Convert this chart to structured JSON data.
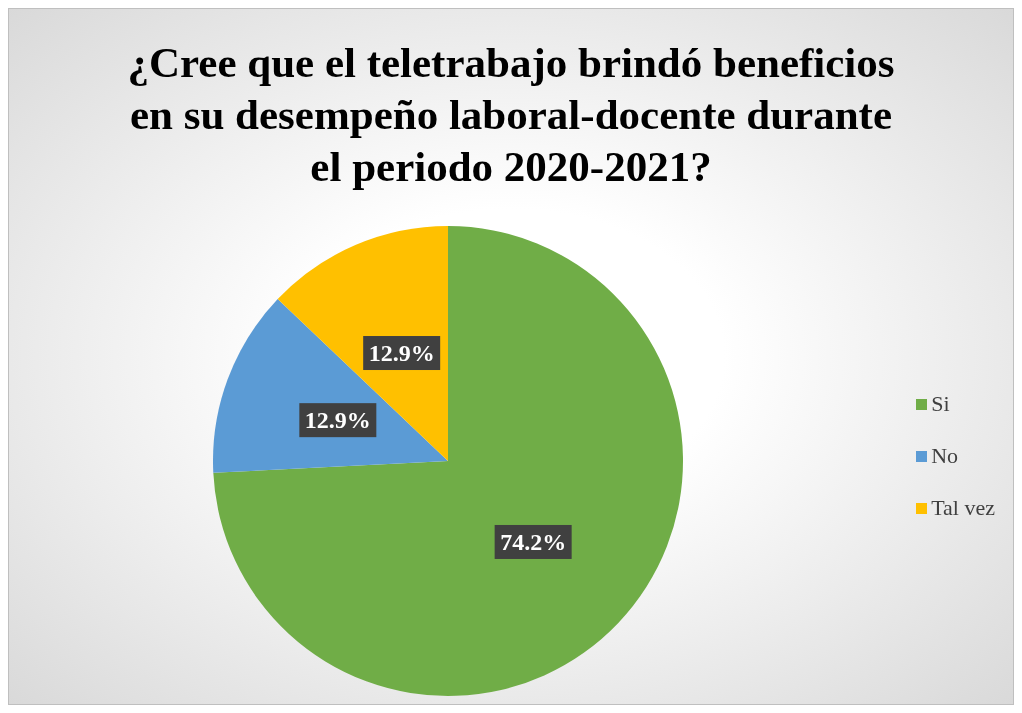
{
  "chart_data": {
    "type": "pie",
    "title": "¿Cree que el teletrabajo brindó beneficios en su desempeño laboral-docente durante el periodo 2020-2021?",
    "categories": [
      "Si",
      "No",
      "Tal vez"
    ],
    "values": [
      74.2,
      12.9,
      12.9
    ],
    "colors": [
      "#70ad47",
      "#5b9bd5",
      "#ffc000"
    ],
    "value_labels": [
      "74.2%",
      "12.9%",
      "12.9%"
    ],
    "legend": "right"
  }
}
